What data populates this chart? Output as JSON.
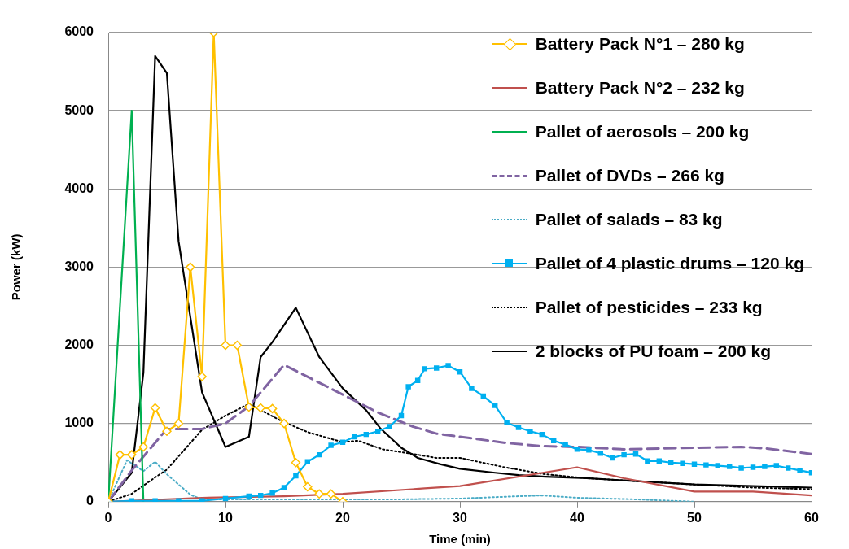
{
  "chart_data": {
    "type": "line",
    "xlabel": "Time (min)",
    "ylabel": "Power (kW)",
    "xlim": [
      0,
      60
    ],
    "xticks": [
      0,
      10,
      20,
      30,
      40,
      50,
      60
    ],
    "ylim": [
      0,
      6000
    ],
    "yticks": [
      0,
      1000,
      2000,
      3000,
      4000,
      5000,
      6000
    ],
    "grid": "y",
    "legend": "top right",
    "series": [
      {
        "name": "Battery Pack N°1 – 280 kg",
        "color": "#ffc000",
        "line_style": "solid",
        "marker": "diamond",
        "x": [
          0,
          1,
          2,
          3,
          4,
          5,
          6,
          7,
          8,
          9,
          10,
          11,
          12,
          13,
          14,
          15,
          16,
          17,
          18,
          19,
          20
        ],
        "values": [
          0,
          600,
          600,
          700,
          1200,
          900,
          1000,
          3000,
          1600,
          6000,
          2000,
          2000,
          1210,
          1200,
          1190,
          1000,
          500,
          190,
          100,
          100,
          0
        ]
      },
      {
        "name": "Battery Pack N°2 – 232 kg",
        "color": "#c0504d",
        "line_style": "solid",
        "marker": "none",
        "x": [
          0,
          8,
          15,
          20,
          27,
          30,
          40,
          44,
          50,
          55,
          60
        ],
        "values": [
          0,
          50,
          70,
          100,
          170,
          200,
          440,
          300,
          130,
          130,
          80
        ]
      },
      {
        "name": "Pallet of aerosols – 200 kg",
        "color": "#00b050",
        "line_style": "solid",
        "marker": "none",
        "x": [
          0,
          2,
          3
        ],
        "values": [
          0,
          5000,
          0
        ]
      },
      {
        "name": "Pallet of DVDs – 266 kg",
        "color": "#8064a2",
        "line_style": "dashed",
        "marker": "none",
        "x": [
          0,
          2,
          5,
          8,
          10,
          12,
          15,
          20,
          23,
          26,
          28,
          30,
          34,
          37,
          40,
          44,
          50,
          54,
          56,
          60
        ],
        "values": [
          0,
          400,
          930,
          930,
          1000,
          1220,
          1750,
          1370,
          1140,
          960,
          870,
          830,
          750,
          710,
          700,
          670,
          690,
          700,
          683,
          610
        ]
      },
      {
        "name": "Pallet of salads – 83 kg",
        "color": "#4bacc6",
        "line_style": "dotted",
        "marker": "none",
        "x": [
          0,
          1.6,
          3,
          4,
          5,
          7,
          8,
          15,
          20,
          25,
          30,
          35,
          37,
          40,
          45,
          50
        ],
        "values": [
          0,
          530,
          390,
          510,
          350,
          90,
          30,
          30,
          30,
          30,
          40,
          70,
          80,
          50,
          30,
          0
        ]
      },
      {
        "name": "Pallet of 4 plastic drums – 120 kg",
        "color": "#00b0f0",
        "line_style": "solid",
        "marker": "square",
        "x": [
          0,
          2,
          4,
          6,
          8,
          10,
          12,
          13,
          14,
          15,
          16,
          17,
          18,
          19,
          20,
          21,
          22,
          23,
          24,
          25,
          25.6,
          26.4,
          27,
          28,
          29,
          30,
          31,
          32,
          33,
          34,
          35,
          36,
          37,
          38,
          39,
          40,
          41,
          42,
          43,
          44,
          45,
          46,
          47,
          48,
          49,
          50,
          51,
          52,
          53,
          54,
          55,
          56,
          57,
          58,
          59,
          60
        ],
        "values": [
          0,
          10,
          10,
          10,
          10,
          40,
          70,
          80,
          110,
          180,
          330,
          510,
          600,
          720,
          760,
          830,
          860,
          900,
          960,
          1100,
          1470,
          1550,
          1700,
          1710,
          1740,
          1660,
          1450,
          1350,
          1230,
          1010,
          950,
          900,
          860,
          780,
          730,
          670,
          660,
          620,
          560,
          600,
          610,
          520,
          520,
          500,
          490,
          480,
          470,
          460,
          450,
          430,
          440,
          450,
          460,
          430,
          400,
          370
        ]
      },
      {
        "name": "Pallet of pesticides – 233 kg",
        "color": "#000000",
        "line_style": "dotted",
        "marker": "none",
        "x": [
          0,
          2,
          4,
          5,
          8,
          10,
          12,
          14.8,
          17,
          20,
          21.3,
          23.4,
          26.4,
          28,
          30,
          33.8,
          37.3,
          40.8,
          44.2,
          50,
          55,
          60
        ],
        "values": [
          0,
          100,
          310,
          410,
          920,
          1100,
          1250,
          1030,
          890,
          760,
          780,
          670,
          600,
          560,
          560,
          440,
          350,
          300,
          270,
          220,
          180,
          160
        ]
      },
      {
        "name": "2 blocks of PU foam – 200 kg",
        "color": "#000000",
        "line_style": "solid",
        "marker": "none",
        "x": [
          0,
          2,
          3,
          4,
          5,
          6,
          8,
          10,
          12,
          13,
          14,
          16,
          18,
          20,
          22,
          23.2,
          25,
          26.4,
          28.3,
          30,
          33,
          35,
          37.3,
          40.8,
          44.2,
          50,
          55,
          60
        ],
        "values": [
          0,
          370,
          1650,
          5700,
          5480,
          3330,
          1400,
          700,
          830,
          1850,
          2040,
          2480,
          1850,
          1450,
          1170,
          940,
          690,
          560,
          480,
          420,
          370,
          340,
          320,
          300,
          270,
          220,
          200,
          180
        ]
      }
    ]
  }
}
